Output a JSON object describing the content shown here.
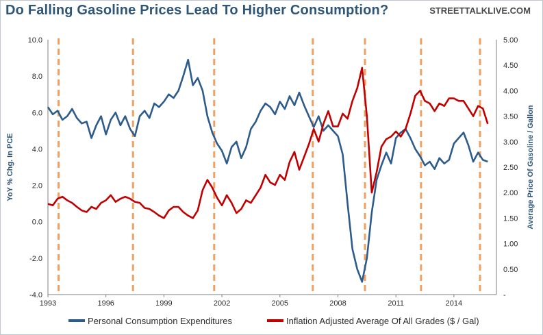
{
  "header": {
    "title": "Do Falling Gasoline Prices Lead To Higher Consumption?",
    "brand": "STREETTALKLIVE.COM"
  },
  "chart_data": {
    "type": "line",
    "ylabel": "YoY % Chg. In PCE",
    "y2label": "Average Price Of Gasoline / Gallon",
    "ylim": [
      -4.0,
      10.0
    ],
    "y2lim": [
      0,
      5.0
    ],
    "xlim": [
      1993.0,
      2016.2
    ],
    "yticks": [
      "10.0",
      "8.0",
      "6.0",
      "4.0",
      "2.0",
      "0.0",
      "-2.0",
      "-4.0"
    ],
    "y2ticks": [
      "5.00",
      "4.50",
      "4.00",
      "3.50",
      "3.00",
      "2.50",
      "2.00",
      "1.50",
      "1.00",
      "0.50",
      "-"
    ],
    "xticks": [
      "1993",
      "1996",
      "1999",
      "2002",
      "2005",
      "2008",
      "2011",
      "2014"
    ],
    "grid": false,
    "legend_position": "bottom",
    "colors": {
      "pce": "#2c5b8c",
      "gas": "#c00000",
      "marker": "#f0a060"
    },
    "series": [
      {
        "name": "Personal Consumption Expenditures",
        "axis": "left",
        "x": [
          1993.0,
          1993.25,
          1993.5,
          1993.75,
          1994.0,
          1994.25,
          1994.5,
          1994.75,
          1995.0,
          1995.25,
          1995.5,
          1995.75,
          1996.0,
          1996.25,
          1996.5,
          1996.75,
          1997.0,
          1997.25,
          1997.5,
          1997.75,
          1998.0,
          1998.25,
          1998.5,
          1998.75,
          1999.0,
          1999.25,
          1999.5,
          1999.75,
          2000.0,
          2000.25,
          2000.5,
          2000.75,
          2001.0,
          2001.25,
          2001.5,
          2001.75,
          2002.0,
          2002.25,
          2002.5,
          2002.75,
          2003.0,
          2003.25,
          2003.5,
          2003.75,
          2004.0,
          2004.25,
          2004.5,
          2004.75,
          2005.0,
          2005.25,
          2005.5,
          2005.75,
          2006.0,
          2006.25,
          2006.5,
          2006.75,
          2007.0,
          2007.25,
          2007.5,
          2007.75,
          2008.0,
          2008.25,
          2008.5,
          2008.75,
          2009.0,
          2009.25,
          2009.5,
          2009.75,
          2010.0,
          2010.25,
          2010.5,
          2010.75,
          2011.0,
          2011.25,
          2011.5,
          2011.75,
          2012.0,
          2012.25,
          2012.5,
          2012.75,
          2013.0,
          2013.25,
          2013.5,
          2013.75,
          2014.0,
          2014.25,
          2014.5,
          2014.75,
          2015.0,
          2015.25,
          2015.5,
          2015.75
        ],
        "values": [
          6.3,
          5.9,
          6.1,
          5.6,
          5.8,
          6.2,
          5.7,
          5.4,
          5.5,
          4.6,
          5.3,
          5.8,
          4.8,
          5.6,
          6.0,
          5.3,
          5.8,
          5.1,
          4.7,
          5.8,
          6.1,
          5.7,
          6.5,
          6.3,
          6.6,
          7.0,
          6.8,
          7.2,
          8.0,
          8.9,
          7.5,
          7.9,
          7.2,
          5.8,
          4.9,
          4.3,
          3.9,
          3.2,
          4.1,
          4.4,
          3.5,
          4.1,
          5.1,
          5.5,
          6.1,
          6.5,
          6.3,
          5.9,
          6.6,
          6.2,
          6.9,
          6.4,
          7.1,
          6.4,
          5.8,
          5.2,
          5.8,
          5.0,
          5.3,
          5.0,
          4.7,
          3.7,
          1.0,
          -1.5,
          -2.6,
          -3.3,
          -2.0,
          0.5,
          2.3,
          3.1,
          3.8,
          3.2,
          4.6,
          4.9,
          5.1,
          4.6,
          4.0,
          3.6,
          3.1,
          3.3,
          2.9,
          3.5,
          3.2,
          3.4,
          4.3,
          4.6,
          4.9,
          4.2,
          3.3,
          3.8,
          3.4,
          3.3
        ]
      },
      {
        "name": "Inflation Adjusted Average Of All Grades ($ / Gal)",
        "axis": "right",
        "x": [
          1993.0,
          1993.25,
          1993.5,
          1993.75,
          1994.0,
          1994.25,
          1994.5,
          1994.75,
          1995.0,
          1995.25,
          1995.5,
          1995.75,
          1996.0,
          1996.25,
          1996.5,
          1996.75,
          1997.0,
          1997.25,
          1997.5,
          1997.75,
          1998.0,
          1998.25,
          1998.5,
          1998.75,
          1999.0,
          1999.25,
          1999.5,
          1999.75,
          2000.0,
          2000.25,
          2000.5,
          2000.75,
          2001.0,
          2001.25,
          2001.5,
          2001.75,
          2002.0,
          2002.25,
          2002.5,
          2002.75,
          2003.0,
          2003.25,
          2003.5,
          2003.75,
          2004.0,
          2004.25,
          2004.5,
          2004.75,
          2005.0,
          2005.25,
          2005.5,
          2005.75,
          2006.0,
          2006.25,
          2006.5,
          2006.75,
          2007.0,
          2007.25,
          2007.5,
          2007.75,
          2008.0,
          2008.25,
          2008.5,
          2008.75,
          2009.0,
          2009.25,
          2009.5,
          2009.75,
          2010.0,
          2010.25,
          2010.5,
          2010.75,
          2011.0,
          2011.25,
          2011.5,
          2011.75,
          2012.0,
          2012.25,
          2012.5,
          2012.75,
          2013.0,
          2013.25,
          2013.5,
          2013.75,
          2014.0,
          2014.25,
          2014.5,
          2014.75,
          2015.0,
          2015.25,
          2015.5,
          2015.75
        ],
        "values": [
          1.78,
          1.75,
          1.88,
          1.92,
          1.85,
          1.8,
          1.72,
          1.65,
          1.62,
          1.72,
          1.68,
          1.8,
          1.85,
          1.95,
          1.82,
          1.88,
          1.92,
          1.88,
          1.82,
          1.8,
          1.7,
          1.68,
          1.62,
          1.55,
          1.5,
          1.65,
          1.72,
          1.72,
          1.62,
          1.55,
          1.5,
          1.65,
          2.05,
          2.25,
          2.1,
          1.9,
          1.75,
          1.95,
          1.8,
          1.6,
          1.68,
          1.85,
          1.8,
          1.95,
          2.1,
          2.35,
          2.2,
          2.15,
          2.35,
          2.25,
          2.6,
          2.8,
          2.45,
          2.7,
          2.95,
          3.25,
          3.0,
          3.35,
          3.6,
          3.3,
          3.3,
          3.55,
          3.45,
          3.8,
          4.05,
          4.45,
          3.5,
          2.0,
          2.4,
          2.9,
          3.05,
          3.1,
          3.2,
          3.1,
          3.25,
          3.55,
          3.9,
          4.0,
          3.8,
          3.75,
          3.6,
          3.75,
          3.7,
          3.85,
          3.85,
          3.8,
          3.8,
          3.65,
          3.5,
          3.7,
          3.65,
          3.35
        ]
      }
    ],
    "markers": [
      1993.55,
      1997.4,
      2001.6,
      2006.7,
      2009.4,
      2012.3,
      2015.35
    ]
  }
}
